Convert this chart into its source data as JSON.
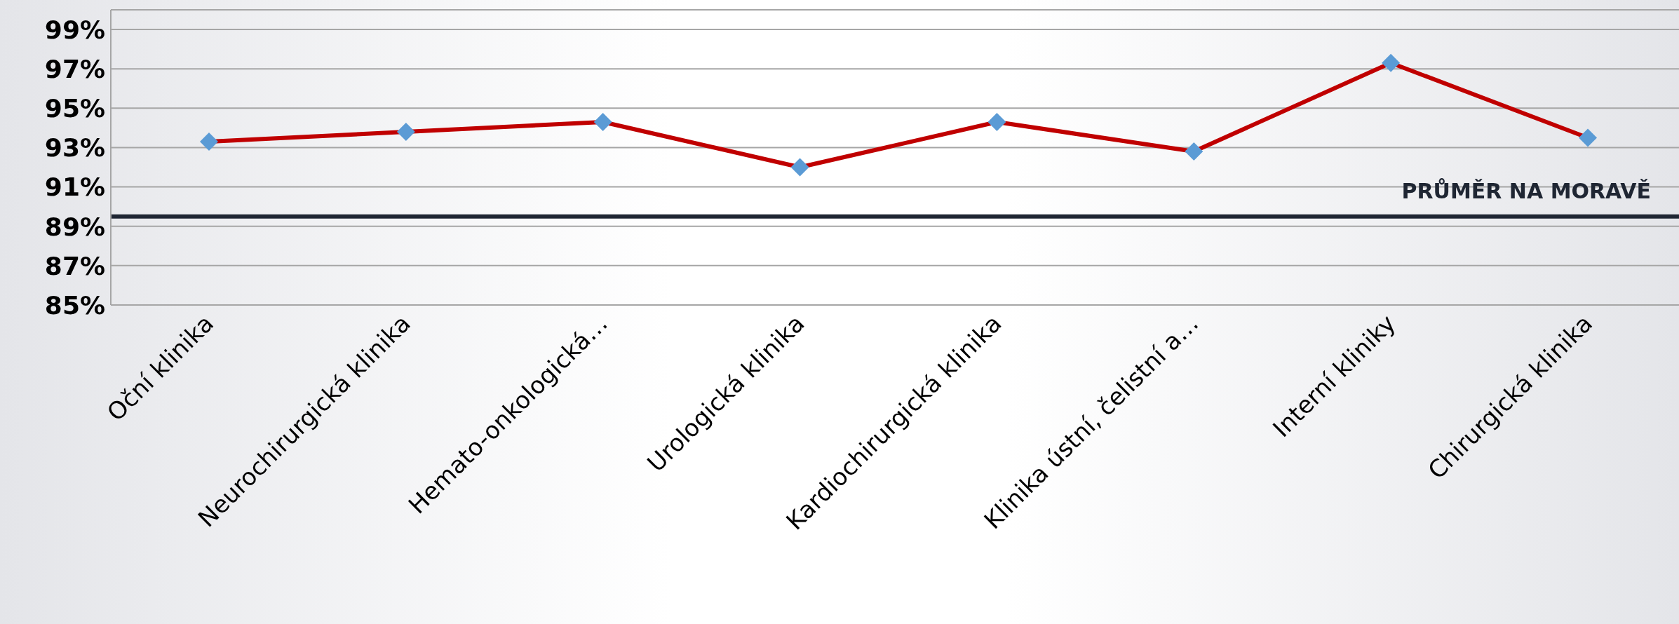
{
  "chart_data": {
    "type": "line",
    "categories": [
      "Oční klinika",
      "Neurochirurgická klinika",
      "Hemato-onkologická…",
      "Urologická klinika",
      "Kardiochirurgická klinika",
      "Klinika ústní, čelistní a…",
      "Interní kliniky",
      "Chirurgická klinika"
    ],
    "series": [
      {
        "color": "#c00000",
        "values": [
          93.3,
          93.8,
          94.3,
          92.0,
          94.3,
          92.8,
          97.3,
          93.5
        ]
      }
    ],
    "marker": "diamond",
    "line_style": "solid",
    "ylim": [
      85,
      100
    ],
    "yticks": [
      {
        "value": 85,
        "label": "85%"
      },
      {
        "value": 87,
        "label": "87%"
      },
      {
        "value": 89,
        "label": "89%"
      },
      {
        "value": 91,
        "label": "91%"
      },
      {
        "value": 93,
        "label": "93%"
      },
      {
        "value": 95,
        "label": "95%"
      },
      {
        "value": 97,
        "label": "97%"
      },
      {
        "value": 99,
        "label": "99%"
      }
    ],
    "grid": "y",
    "legend": false,
    "ref_lines": [
      {
        "axis": "y",
        "value": 89.5,
        "label": "PRŮMĚR NA MORAVĚ",
        "color": "#1f2633"
      }
    ]
  }
}
